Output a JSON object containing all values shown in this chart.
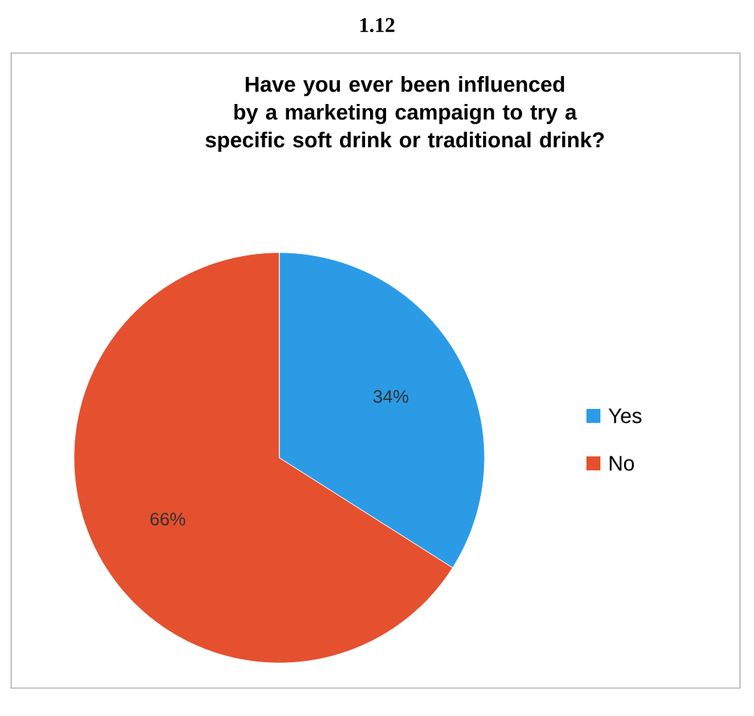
{
  "chart_data": {
    "type": "pie",
    "title": "Have you ever been influenced by a marketing campaign to try a specific soft drink or traditional drink?",
    "annotations": [
      "1.12"
    ],
    "categories": [
      "Yes",
      "No"
    ],
    "values": [
      34,
      66
    ],
    "colors": [
      "#2b9be6",
      "#e5502f"
    ],
    "value_labels": [
      "34%",
      "66%"
    ],
    "legend": "right"
  }
}
